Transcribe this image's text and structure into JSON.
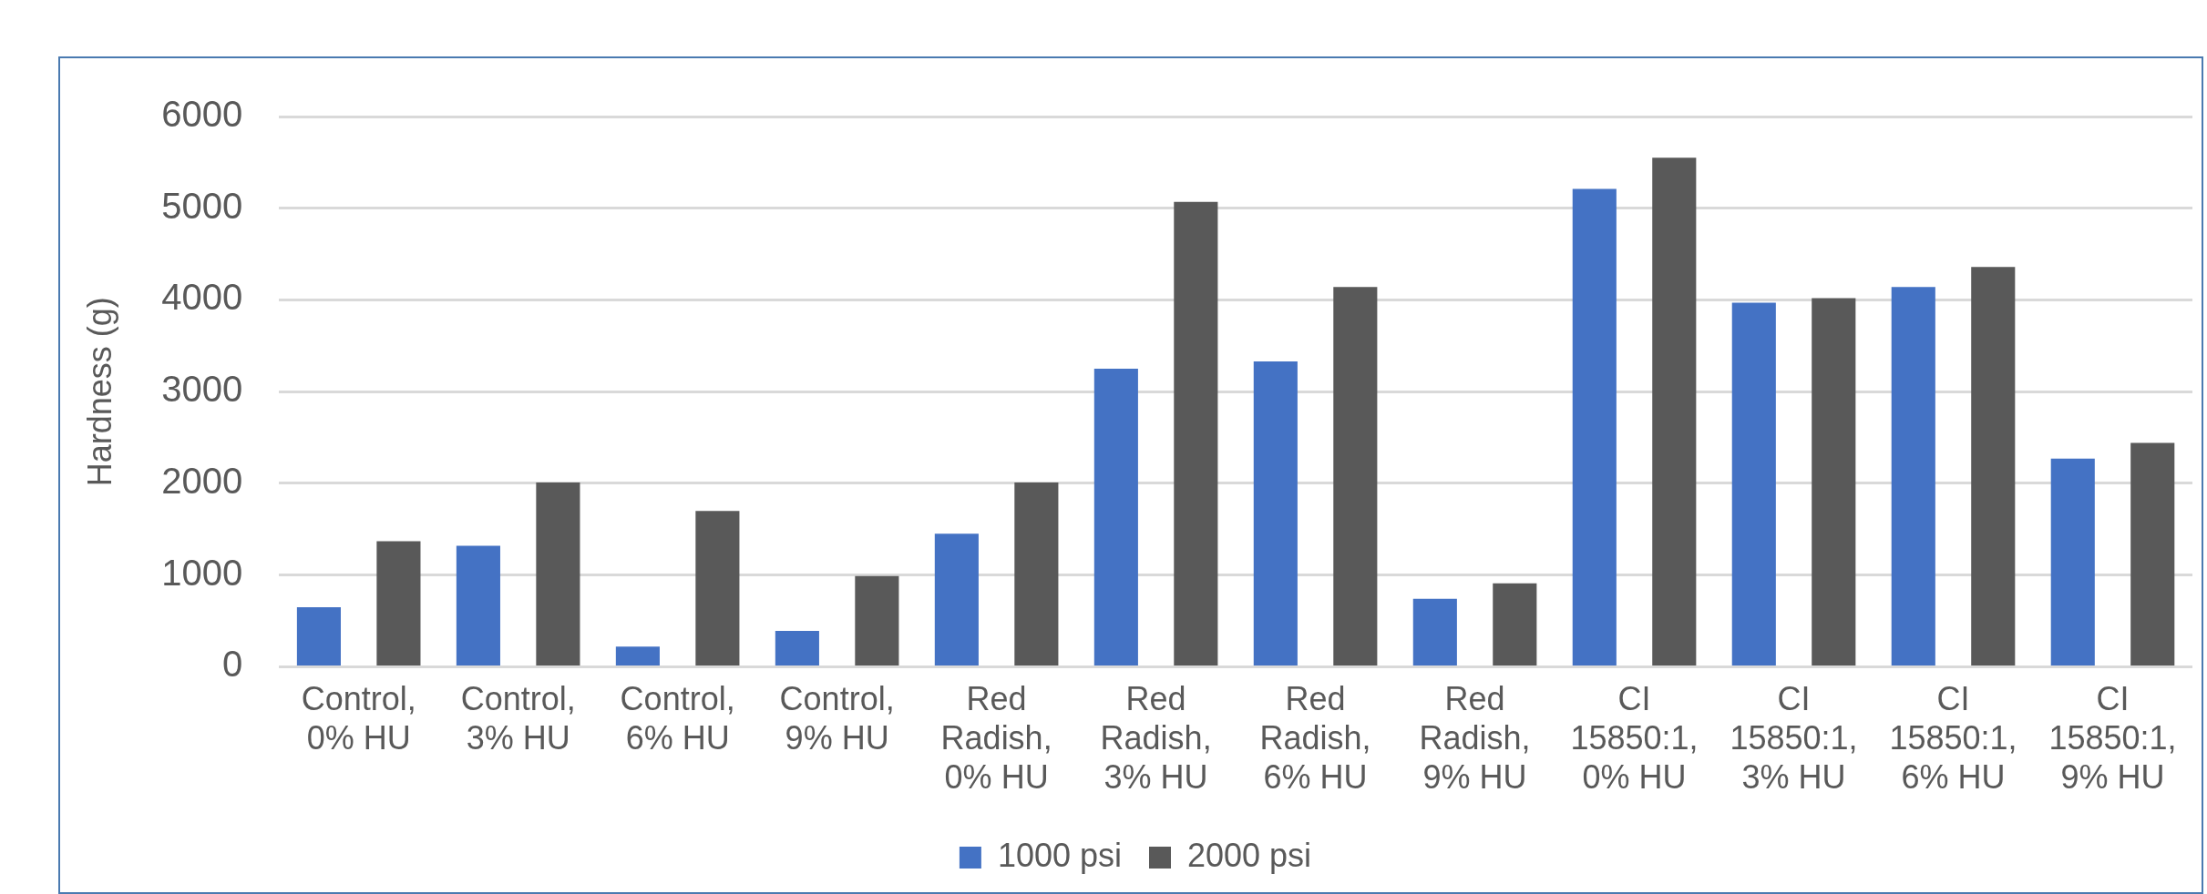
{
  "chart_data": {
    "type": "bar",
    "ylabel": "Hardness (g)",
    "categories": [
      "Control, 0% HU",
      "Control, 3% HU",
      "Control, 6% HU",
      "Control, 9% HU",
      "Red Radish, 0% HU",
      "Red Radish, 3% HU",
      "Red Radish, 6% HU",
      "Red Radish, 9% HU",
      "CI 15850:1, 0% HU",
      "CI 15850:1, 3% HU",
      "CI 15850:1, 6% HU",
      "CI 15850:1, 9% HU"
    ],
    "series": [
      {
        "name": "1000 psi",
        "color": "#4472c4",
        "values": [
          650,
          1320,
          220,
          390,
          1450,
          3250,
          3330,
          740,
          5210,
          3970,
          4140,
          2270
        ]
      },
      {
        "name": "2000 psi",
        "color": "#595959",
        "values": [
          1370,
          2010,
          1700,
          990,
          2010,
          5070,
          4140,
          910,
          5550,
          4020,
          4360,
          2440
        ]
      }
    ],
    "ylim": [
      0,
      6000
    ],
    "yticks": [
      0,
      1000,
      2000,
      3000,
      4000,
      5000,
      6000
    ],
    "grid": "y",
    "legend": "bottom"
  }
}
